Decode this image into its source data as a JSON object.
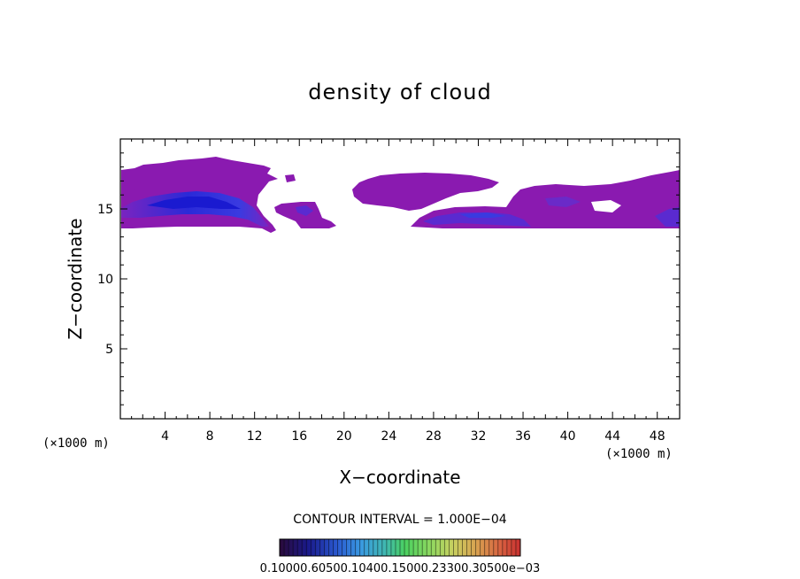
{
  "chart_data": {
    "type": "heatmap",
    "title": "density of cloud",
    "xlabel": "X−coordinate",
    "ylabel": "Z−coordinate",
    "x_unit": "(×1000 m)",
    "z_unit": "(×1000 m)",
    "xlim": [
      0,
      50
    ],
    "ylim": [
      0,
      20
    ],
    "x_ticks": [
      4,
      8,
      12,
      16,
      20,
      24,
      28,
      32,
      36,
      40,
      44,
      48
    ],
    "y_ticks": [
      5,
      10,
      15
    ],
    "contour_interval_text": "CONTOUR INTERVAL = 1.000E−04",
    "colorbar_labels_text": "0.10000.60500.10400.15000.23300.30500e−03",
    "colorbar_colors": [
      "#2a0a3a",
      "#1a1a8c",
      "#2a5ad0",
      "#3a9ae0",
      "#40b8b0",
      "#4ad060",
      "#8ad860",
      "#c8d060",
      "#d8a050",
      "#d86040",
      "#c83030"
    ],
    "colors": {
      "low": "#8a1ab0",
      "mid": "#6a2ac8",
      "high": "#3a3ae0",
      "peak": "#1a1ad8"
    },
    "regions": [
      {
        "name": "left-cloud",
        "x_range": [
          0,
          14
        ],
        "z_range": [
          13.5,
          18.5
        ]
      },
      {
        "name": "small-cloud",
        "x_range": [
          13.5,
          19
        ],
        "z_range": [
          13.5,
          15.3
        ]
      },
      {
        "name": "right-upper-cloud",
        "x_range": [
          20.5,
          35
        ],
        "z_range": [
          15.3,
          17.5
        ]
      },
      {
        "name": "right-lower-cloud",
        "x_range": [
          26,
          50
        ],
        "z_range": [
          13.5,
          17.5
        ]
      }
    ]
  }
}
